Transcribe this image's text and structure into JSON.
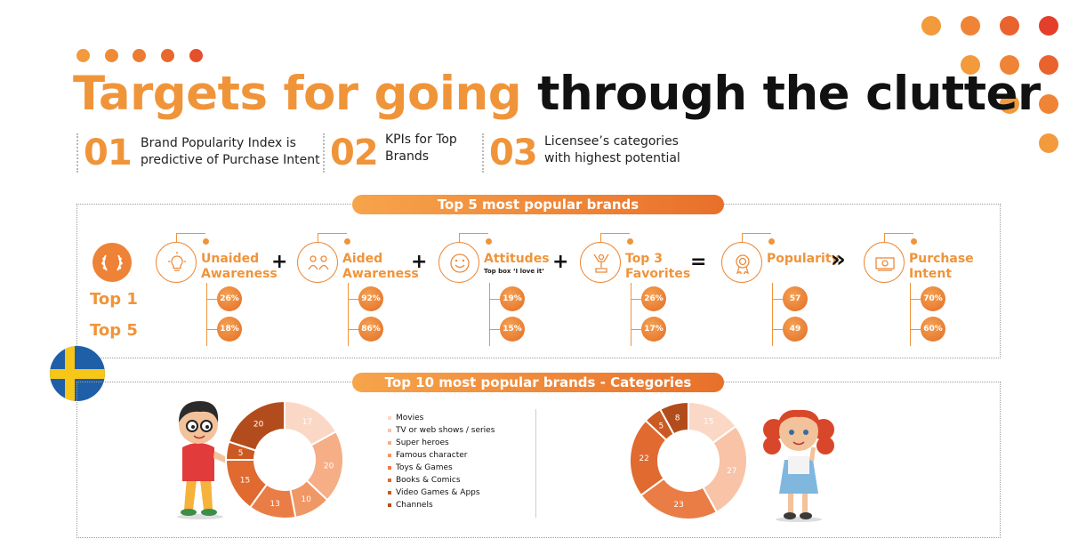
{
  "title": {
    "part1": "Targets for going",
    "part2": "through the clutter"
  },
  "kpis": [
    {
      "num": "01",
      "text1": "Brand Popularity Index is",
      "text2": "predictive of Purchase Intent"
    },
    {
      "num": "02",
      "text1": "KPIs for Top",
      "text2": "Brands"
    },
    {
      "num": "03",
      "text1": "Licensee’s categories",
      "text2": "with highest potential"
    }
  ],
  "top5": {
    "header": "Top 5 most popular brands",
    "rows": [
      "Top 1",
      "Top 5"
    ],
    "metrics": [
      {
        "line1": "Unaided",
        "line2": "Awareness",
        "sub": "",
        "icon": "lightbulb-icon",
        "top1": "26%",
        "top5": "18%"
      },
      {
        "line1": "Aided",
        "line2": "Awareness",
        "sub": "",
        "icon": "people-icon",
        "top1": "92%",
        "top5": "86%"
      },
      {
        "line1": "Attitudes",
        "line2": "",
        "sub": "Top box ‘I love it’",
        "icon": "smile-icon",
        "top1": "19%",
        "top5": "15%"
      },
      {
        "line1": "Top 3",
        "line2": "Favorites",
        "sub": "",
        "icon": "trophy-person-icon",
        "top1": "26%",
        "top5": "17%"
      },
      {
        "line1": "Popularity",
        "line2": "",
        "sub": "",
        "icon": "medal-icon",
        "top1": "57",
        "top5": "49"
      },
      {
        "line1": "Purchase",
        "line2": "Intent",
        "sub": "",
        "icon": "money-icon",
        "top1": "70%",
        "top5": "60%"
      }
    ],
    "operators": [
      "+",
      "+",
      "+",
      "=",
      "»"
    ]
  },
  "categories": {
    "header": "Top 10 most popular brands - Categories",
    "legend": [
      {
        "label": "Movies",
        "color": "#fbd8c6"
      },
      {
        "label": "TV or web shows / series",
        "color": "#f8c3a6"
      },
      {
        "label": "Super heroes",
        "color": "#f6ae87"
      },
      {
        "label": "Famous character",
        "color": "#f09766"
      },
      {
        "label": "Toys & Games",
        "color": "#ea7d45"
      },
      {
        "label": "Books & Comics",
        "color": "#e06a30"
      },
      {
        "label": "Video Games & Apps",
        "color": "#cb5a22"
      },
      {
        "label": "Channels",
        "color": "#b34c1c"
      }
    ]
  },
  "chart_data": [
    {
      "type": "pie",
      "values": [
        17,
        20,
        10,
        13,
        15,
        5,
        20
      ],
      "colors": [
        "#fbd8c6",
        "#f6ae87",
        "#f09766",
        "#ea7d45",
        "#e06a30",
        "#cb5a22",
        "#b34c1c"
      ],
      "categories": [
        "Movies",
        "Super heroes",
        "Famous character",
        "Toys & Games",
        "Books & Comics",
        "Video Games & Apps",
        "Channels"
      ]
    },
    {
      "type": "pie",
      "values": [
        15,
        27,
        23,
        22,
        5,
        8
      ],
      "colors": [
        "#fbd8c6",
        "#f8c3a6",
        "#ea7d45",
        "#e06a30",
        "#cb5a22",
        "#b34c1c"
      ],
      "categories": [
        "Movies",
        "TV or web shows / series",
        "Toys & Games",
        "Books & Comics",
        "Video Games & Apps",
        "Channels"
      ]
    }
  ]
}
